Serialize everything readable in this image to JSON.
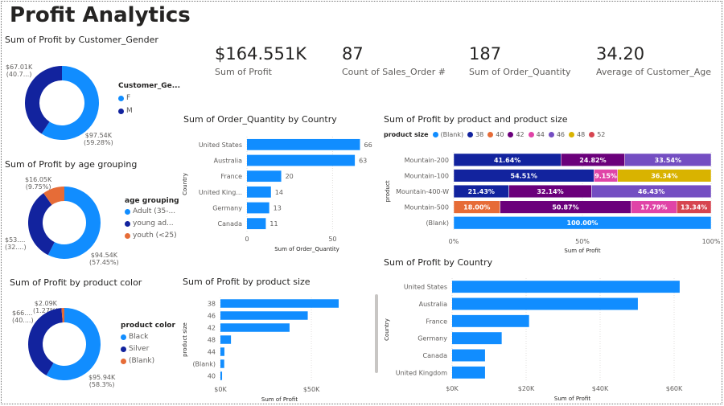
{
  "page": {
    "title": "Profit Analytics"
  },
  "kpis": [
    {
      "value": "$164.551K",
      "label": "Sum of Profit"
    },
    {
      "value": "87",
      "label": "Count of Sales_Order #"
    },
    {
      "value": "187",
      "label": "Sum of Order_Quantity"
    },
    {
      "value": "34.20",
      "label": "Average of Customer_Age"
    }
  ],
  "colors": {
    "light_blue": "#118DFF",
    "dark_blue": "#12239E",
    "orange": "#E66C37",
    "purple": "#6B007B",
    "pink": "#E044A7",
    "violet": "#744EC2",
    "gold": "#D9B300",
    "red": "#D64550"
  },
  "chart_data": [
    {
      "id": "gender",
      "type": "pie",
      "donut": true,
      "title": "Sum of Profit by Customer_Gender",
      "legend_title": "Customer_Ge...",
      "legend_position": "right",
      "slices": [
        {
          "name": "F",
          "value": 97.54,
          "label": "$97.54K",
          "pct_label": "(59.28%)",
          "color": "#118DFF"
        },
        {
          "name": "M",
          "value": 67.01,
          "label": "$67.01K",
          "pct_label": "(40.7...)",
          "color": "#12239E"
        }
      ]
    },
    {
      "id": "age",
      "type": "pie",
      "donut": true,
      "title": "Sum of Profit by age grouping",
      "legend_title": "age grouping",
      "legend_position": "right",
      "slices": [
        {
          "name": "Adult (35-...",
          "value": 94.54,
          "label": "$94.54K",
          "pct_label": "(57.45%)",
          "color": "#118DFF"
        },
        {
          "name": "young ad...",
          "value": 53.96,
          "label": "$53....",
          "pct_label": "(32....)",
          "color": "#12239E"
        },
        {
          "name": "youth (<25)",
          "value": 16.05,
          "label": "$16.05K",
          "pct_label": "(9.75%)",
          "color": "#E66C37"
        }
      ]
    },
    {
      "id": "color",
      "type": "pie",
      "donut": true,
      "title": "Sum of Profit by product color",
      "legend_title": "product color",
      "legend_position": "right",
      "slices": [
        {
          "name": "Black",
          "value": 95.94,
          "label": "$95.94K",
          "pct_label": "(58.3%)",
          "color": "#118DFF"
        },
        {
          "name": "Silver",
          "value": 66.5,
          "label": "$66....",
          "pct_label": "(40....)",
          "color": "#12239E"
        },
        {
          "name": "(Blank)",
          "value": 2.09,
          "label": "$2.09K",
          "pct_label": "(1.27%)",
          "color": "#E66C37"
        }
      ]
    },
    {
      "id": "qty",
      "type": "bar",
      "orientation": "horizontal",
      "title": "Sum of Order_Quantity by Country",
      "xlabel": "Sum of Order_Quantity",
      "ylabel": "Country",
      "categories": [
        "United States",
        "Australia",
        "France",
        "United King...",
        "Germany",
        "Canada"
      ],
      "values": [
        66,
        63,
        20,
        14,
        13,
        11
      ],
      "data_labels": [
        "66",
        "63",
        "20",
        "14",
        "13",
        "11"
      ],
      "xlim": [
        0,
        70
      ],
      "xticks": [
        {
          "v": 0,
          "t": "0"
        },
        {
          "v": 50,
          "t": "50"
        }
      ],
      "grid": true
    },
    {
      "id": "stacked",
      "type": "bar",
      "stacked": "100%",
      "orientation": "horizontal",
      "title": "Sum of Profit by product and product size",
      "legend_title": "product size",
      "legend_position": "top-left",
      "xlabel": "Sum of Profit",
      "ylabel": "product",
      "legend": [
        {
          "name": "(Blank)",
          "color": "#118DFF"
        },
        {
          "name": "38",
          "color": "#12239E"
        },
        {
          "name": "40",
          "color": "#E66C37"
        },
        {
          "name": "42",
          "color": "#6B007B"
        },
        {
          "name": "44",
          "color": "#E044A7"
        },
        {
          "name": "46",
          "color": "#744EC2"
        },
        {
          "name": "48",
          "color": "#D9B300"
        },
        {
          "name": "52",
          "color": "#D64550"
        }
      ],
      "categories": [
        "Mountain-200",
        "Mountain-100",
        "Mountain-400-W",
        "Mountain-500",
        "(Blank)"
      ],
      "rows": [
        [
          {
            "size": "38",
            "pct": 41.64,
            "label": "41.64%"
          },
          {
            "size": "42",
            "pct": 24.82,
            "label": "24.82%"
          },
          {
            "size": "46",
            "pct": 33.54,
            "label": "33.54%"
          }
        ],
        [
          {
            "size": "38",
            "pct": 54.51,
            "label": "54.51%"
          },
          {
            "size": "44",
            "pct": 9.15,
            "label": "9.15%"
          },
          {
            "size": "48",
            "pct": 36.34,
            "label": "36.34%"
          }
        ],
        [
          {
            "size": "38",
            "pct": 21.43,
            "label": "21.43%"
          },
          {
            "size": "42",
            "pct": 32.14,
            "label": "32.14%"
          },
          {
            "size": "46",
            "pct": 46.43,
            "label": "46.43%"
          }
        ],
        [
          {
            "size": "40",
            "pct": 18.0,
            "label": "18.00%"
          },
          {
            "size": "42",
            "pct": 50.87,
            "label": "50.87%"
          },
          {
            "size": "44",
            "pct": 17.79,
            "label": "17.79%"
          },
          {
            "size": "52",
            "pct": 13.34,
            "label": "13.34%"
          }
        ],
        [
          {
            "size": "(Blank)",
            "pct": 100,
            "label": "100.00%"
          }
        ]
      ],
      "xticks": [
        {
          "v": 0,
          "t": "0%"
        },
        {
          "v": 50,
          "t": "50%"
        },
        {
          "v": 100,
          "t": "100%"
        }
      ]
    },
    {
      "id": "size",
      "type": "bar",
      "orientation": "horizontal",
      "title": "Sum of Profit by product size",
      "xlabel": "Sum of Profit",
      "ylabel": "product size",
      "categories": [
        "38",
        "46",
        "42",
        "48",
        "44",
        "(Blank)",
        "40"
      ],
      "values": [
        65,
        48,
        38,
        5.8,
        2.2,
        2.09,
        0.9
      ],
      "xlim": [
        0,
        65
      ],
      "xticks": [
        {
          "v": 0,
          "t": "$0K"
        },
        {
          "v": 50,
          "t": "$50K"
        }
      ],
      "grid": true
    },
    {
      "id": "country",
      "type": "bar",
      "orientation": "horizontal",
      "title": "Sum of Profit by Country",
      "xlabel": "Sum of Profit",
      "ylabel": "Country",
      "categories": [
        "United States",
        "Australia",
        "France",
        "Germany",
        "Canada",
        "United Kingdom"
      ],
      "values": [
        61.5,
        50.2,
        20.8,
        13.4,
        8.9,
        8.9
      ],
      "xlim": [
        0,
        65
      ],
      "xticks": [
        {
          "v": 0,
          "t": "$0K"
        },
        {
          "v": 20,
          "t": "$20K"
        },
        {
          "v": 40,
          "t": "$40K"
        },
        {
          "v": 60,
          "t": "$60K"
        }
      ],
      "grid": true
    }
  ]
}
